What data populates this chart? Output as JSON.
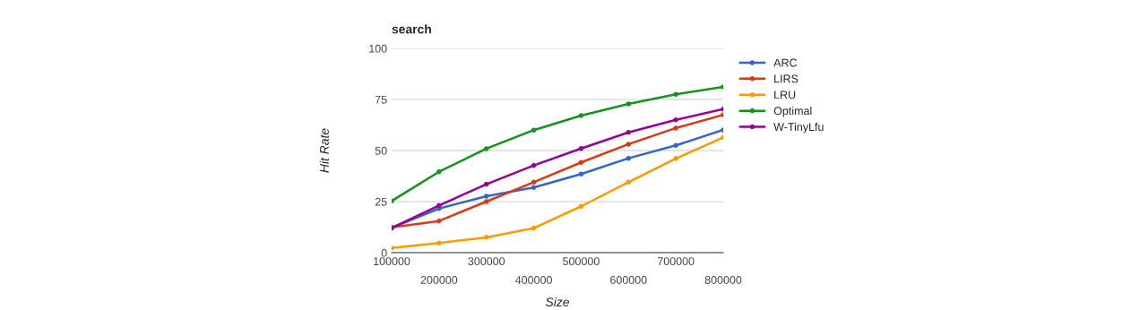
{
  "chart_data": {
    "type": "line",
    "title": "search",
    "xlabel": "Size",
    "ylabel": "Hit Rate",
    "x": [
      100000,
      200000,
      300000,
      400000,
      500000,
      600000,
      700000,
      800000
    ],
    "xlim": [
      100000,
      800000
    ],
    "xticks": [
      100000,
      300000,
      500000,
      700000
    ],
    "x2lim": [
      100000,
      800000
    ],
    "x2ticks": [
      200000,
      400000,
      600000,
      800000
    ],
    "ylim": [
      0,
      100
    ],
    "yticks": [
      0,
      25,
      50,
      75,
      100
    ],
    "grid": "y",
    "legend": "right",
    "marker": "circle",
    "line_style": "solid",
    "series": [
      {
        "name": "ARC",
        "color": "#3366cc",
        "values": [
          12.1,
          21.6,
          27.6,
          31.9,
          38.5,
          46.2,
          52.5,
          60.1
        ]
      },
      {
        "name": "LIRS",
        "color": "#dc3912",
        "values": [
          12.4,
          15.5,
          25.0,
          34.5,
          44.2,
          53.1,
          61.0,
          67.5
        ]
      },
      {
        "name": "LRU",
        "color": "#ff9900",
        "values": [
          2.3,
          4.7,
          7.5,
          12.0,
          22.7,
          34.5,
          46.1,
          56.4
        ]
      },
      {
        "name": "Optimal",
        "color": "#109618",
        "values": [
          25.3,
          39.6,
          50.9,
          60.0,
          67.1,
          72.8,
          77.5,
          81.1
        ]
      },
      {
        "name": "W-TinyLfu",
        "color": "#990099",
        "values": [
          12.1,
          23.1,
          33.5,
          42.7,
          51.0,
          58.9,
          65.0,
          70.3
        ]
      }
    ]
  }
}
